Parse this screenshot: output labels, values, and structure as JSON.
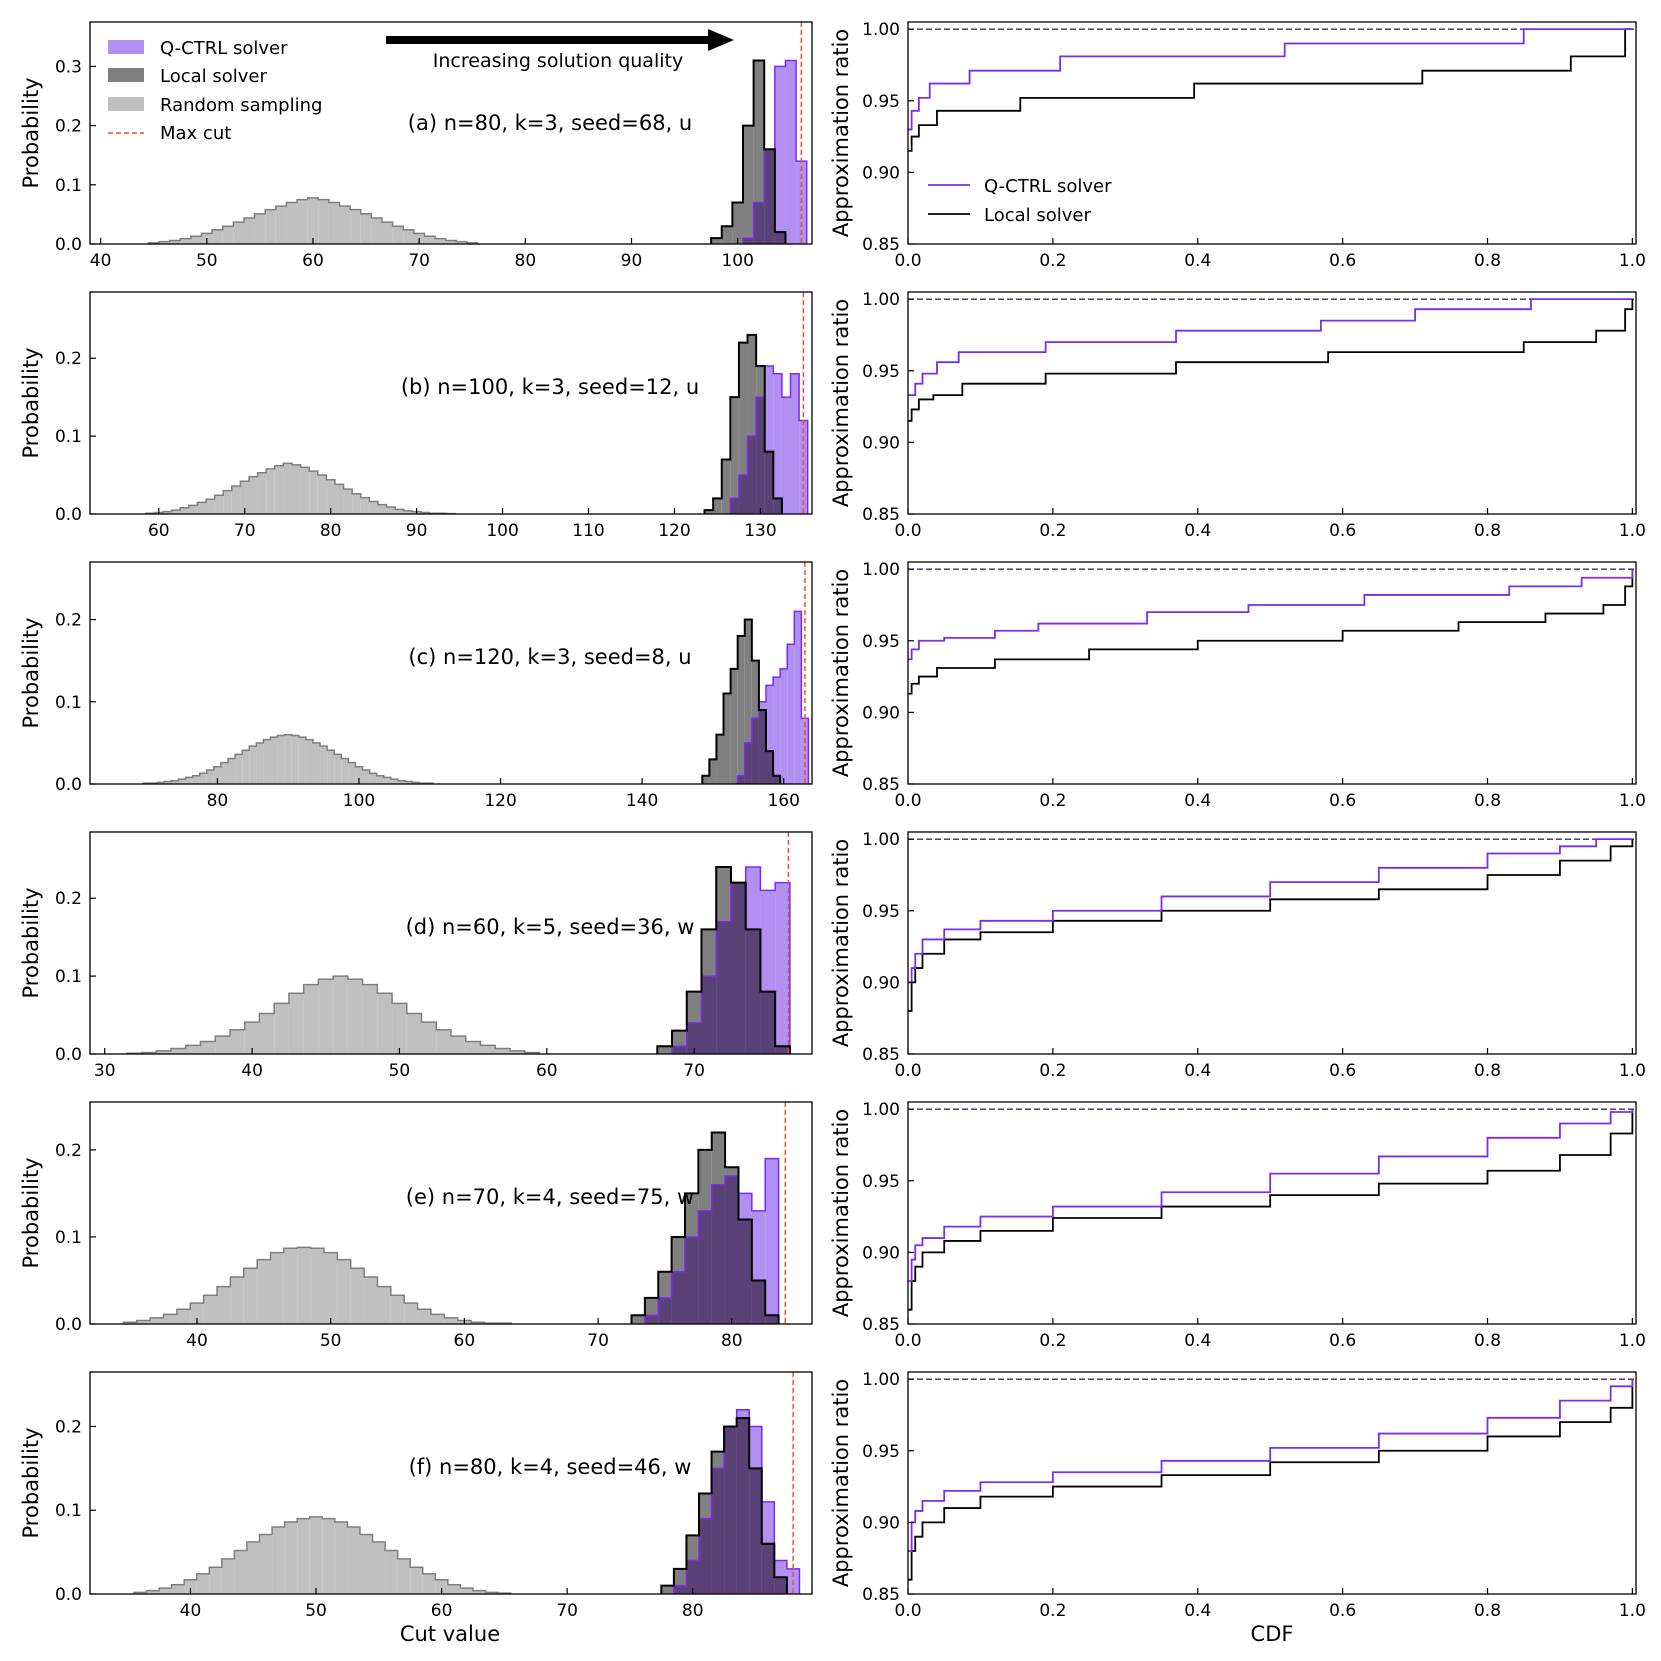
{
  "figure": {
    "hist_xlabel": "Cut value",
    "hist_ylabel": "Probability",
    "cdf_xlabel": "CDF",
    "cdf_ylabel": "Approximation ratio",
    "arrow_text": "Increasing solution quality",
    "hist_legend": [
      "Q-CTRL solver",
      "Local solver",
      "Random sampling",
      "Max cut"
    ],
    "cdf_legend": [
      "Q-CTRL solver",
      "Local solver"
    ],
    "colors": {
      "qctrl_fill": "#b190f2",
      "qctrl_line": "#7b2cf0",
      "local_fill": "#808080",
      "overlap_fill": "#5a4277",
      "random_fill": "#c0c0c0",
      "random_line": "#7f7f7f",
      "maxcut_line": "#e8533a",
      "cdf_qctrl": "#7b2cf0",
      "cdf_local": "#000000"
    }
  },
  "chart_data": [
    {
      "panel": "a",
      "type": "bar",
      "label": "(a)  n=80, k=3, seed=68, u",
      "xlim": [
        39,
        107
      ],
      "ylim": [
        0,
        0.375
      ],
      "xticks": [
        40,
        50,
        60,
        70,
        80,
        90,
        100
      ],
      "yticks": [
        0.0,
        0.1,
        0.2,
        0.3
      ],
      "max_cut": 106,
      "random": {
        "x": [
          45,
          46,
          47,
          48,
          49,
          50,
          51,
          52,
          53,
          54,
          55,
          56,
          57,
          58,
          59,
          60,
          61,
          62,
          63,
          64,
          65,
          66,
          67,
          68,
          69,
          70,
          71,
          72,
          73,
          74,
          75
        ],
        "p": [
          0.002,
          0.004,
          0.006,
          0.009,
          0.013,
          0.018,
          0.024,
          0.03,
          0.037,
          0.044,
          0.051,
          0.058,
          0.064,
          0.07,
          0.075,
          0.078,
          0.075,
          0.07,
          0.064,
          0.058,
          0.051,
          0.044,
          0.037,
          0.03,
          0.024,
          0.018,
          0.013,
          0.009,
          0.006,
          0.004,
          0.002
        ]
      },
      "local": {
        "x": [
          98,
          99,
          100,
          101,
          102,
          103,
          104
        ],
        "p": [
          0.01,
          0.03,
          0.07,
          0.2,
          0.31,
          0.16,
          0.02
        ]
      },
      "qctrl": {
        "x": [
          101,
          102,
          103,
          104,
          105,
          106
        ],
        "p": [
          0.01,
          0.07,
          0.16,
          0.3,
          0.31,
          0.14
        ]
      },
      "cdf_qctrl": {
        "x": [
          0.0,
          0.005,
          0.015,
          0.03,
          0.085,
          0.21,
          0.52,
          0.85,
          1.0
        ],
        "y": [
          0.93,
          0.943,
          0.952,
          0.962,
          0.971,
          0.981,
          0.99,
          1.0,
          1.0
        ]
      },
      "cdf_local": {
        "x": [
          0.0,
          0.005,
          0.015,
          0.04,
          0.155,
          0.395,
          0.71,
          0.915,
          0.99,
          1.0
        ],
        "y": [
          0.915,
          0.925,
          0.933,
          0.943,
          0.952,
          0.962,
          0.971,
          0.981,
          1.0,
          1.0
        ]
      }
    },
    {
      "panel": "b",
      "type": "bar",
      "label": "(b)  n=100, k=3, seed=12, u",
      "xlim": [
        52,
        136
      ],
      "ylim": [
        0,
        0.285
      ],
      "xticks": [
        60,
        70,
        80,
        90,
        100,
        110,
        120,
        130
      ],
      "yticks": [
        0.0,
        0.1,
        0.2
      ],
      "max_cut": 135,
      "random": {
        "x": [
          59,
          60,
          61,
          62,
          63,
          64,
          65,
          66,
          67,
          68,
          69,
          70,
          71,
          72,
          73,
          74,
          75,
          76,
          77,
          78,
          79,
          80,
          81,
          82,
          83,
          84,
          85,
          86,
          87,
          88,
          89,
          90,
          91,
          92,
          93,
          94
        ],
        "p": [
          0.001,
          0.002,
          0.003,
          0.005,
          0.008,
          0.011,
          0.015,
          0.019,
          0.024,
          0.03,
          0.036,
          0.042,
          0.048,
          0.053,
          0.058,
          0.062,
          0.065,
          0.063,
          0.06,
          0.055,
          0.05,
          0.044,
          0.038,
          0.032,
          0.026,
          0.021,
          0.016,
          0.012,
          0.009,
          0.006,
          0.004,
          0.003,
          0.002,
          0.001,
          0.001,
          0.0005
        ]
      },
      "local": {
        "x": [
          124,
          125,
          126,
          127,
          128,
          129,
          130,
          131,
          132
        ],
        "p": [
          0.005,
          0.02,
          0.07,
          0.15,
          0.22,
          0.23,
          0.19,
          0.08,
          0.02
        ]
      },
      "qctrl": {
        "x": [
          127,
          128,
          129,
          130,
          131,
          132,
          133,
          134,
          135
        ],
        "p": [
          0.02,
          0.05,
          0.1,
          0.15,
          0.19,
          0.18,
          0.15,
          0.18,
          0.12
        ]
      },
      "cdf_qctrl": {
        "x": [
          0.0,
          0.01,
          0.02,
          0.04,
          0.07,
          0.19,
          0.37,
          0.57,
          0.7,
          0.86,
          1.0
        ],
        "y": [
          0.933,
          0.941,
          0.948,
          0.956,
          0.963,
          0.97,
          0.978,
          0.985,
          0.993,
          1.0,
          1.0
        ]
      },
      "cdf_local": {
        "x": [
          0.0,
          0.005,
          0.015,
          0.035,
          0.075,
          0.19,
          0.37,
          0.58,
          0.7,
          0.85,
          0.95,
          0.99,
          1.0
        ],
        "y": [
          0.915,
          0.923,
          0.93,
          0.933,
          0.941,
          0.948,
          0.956,
          0.963,
          0.963,
          0.97,
          0.978,
          0.993,
          1.0
        ]
      }
    },
    {
      "panel": "c",
      "type": "bar",
      "label": "(c)  n=120, k=3, seed=8, u",
      "xlim": [
        62,
        164
      ],
      "ylim": [
        0,
        0.27
      ],
      "xticks": [
        80,
        100,
        120,
        140,
        160
      ],
      "yticks": [
        0.0,
        0.1,
        0.2
      ],
      "max_cut": 163,
      "random": {
        "x": [
          70,
          71,
          72,
          73,
          74,
          75,
          76,
          77,
          78,
          79,
          80,
          81,
          82,
          83,
          84,
          85,
          86,
          87,
          88,
          89,
          90,
          91,
          92,
          93,
          94,
          95,
          96,
          97,
          98,
          99,
          100,
          101,
          102,
          103,
          104,
          105,
          106,
          107,
          108,
          109,
          110
        ],
        "p": [
          0.001,
          0.001,
          0.002,
          0.003,
          0.004,
          0.006,
          0.008,
          0.01,
          0.013,
          0.017,
          0.021,
          0.026,
          0.031,
          0.036,
          0.041,
          0.046,
          0.05,
          0.054,
          0.057,
          0.059,
          0.06,
          0.059,
          0.057,
          0.054,
          0.05,
          0.046,
          0.041,
          0.036,
          0.031,
          0.026,
          0.021,
          0.017,
          0.013,
          0.01,
          0.008,
          0.006,
          0.004,
          0.003,
          0.002,
          0.001,
          0.001
        ]
      },
      "local": {
        "x": [
          149,
          150,
          151,
          152,
          153,
          154,
          155,
          156,
          157,
          158,
          159
        ],
        "p": [
          0.01,
          0.03,
          0.06,
          0.11,
          0.14,
          0.18,
          0.2,
          0.15,
          0.09,
          0.04,
          0.01
        ]
      },
      "qctrl": {
        "x": [
          154,
          155,
          156,
          157,
          158,
          159,
          160,
          161,
          162,
          163
        ],
        "p": [
          0.01,
          0.05,
          0.08,
          0.1,
          0.12,
          0.13,
          0.14,
          0.17,
          0.21,
          0.08
        ]
      },
      "cdf_qctrl": {
        "x": [
          0.0,
          0.005,
          0.015,
          0.05,
          0.12,
          0.18,
          0.33,
          0.47,
          0.63,
          0.83,
          0.93,
          1.0
        ],
        "y": [
          0.937,
          0.944,
          0.95,
          0.952,
          0.957,
          0.962,
          0.97,
          0.975,
          0.982,
          0.988,
          0.994,
          1.0
        ]
      },
      "cdf_local": {
        "x": [
          0.0,
          0.005,
          0.015,
          0.04,
          0.12,
          0.25,
          0.4,
          0.6,
          0.76,
          0.88,
          0.96,
          0.99,
          1.0
        ],
        "y": [
          0.913,
          0.92,
          0.925,
          0.931,
          0.937,
          0.944,
          0.95,
          0.957,
          0.963,
          0.969,
          0.975,
          0.988,
          1.0
        ]
      }
    },
    {
      "panel": "d",
      "type": "bar",
      "label": "(d)  n=60, k=5, seed=36, w",
      "xlim": [
        29,
        78
      ],
      "ylim": [
        0,
        0.285
      ],
      "xticks": [
        30,
        40,
        50,
        60,
        70
      ],
      "yticks": [
        0.0,
        0.1,
        0.2
      ],
      "max_cut": 76.4,
      "random": {
        "x": [
          32,
          33,
          34,
          35,
          36,
          37,
          38,
          39,
          40,
          41,
          42,
          43,
          44,
          45,
          46,
          47,
          48,
          49,
          50,
          51,
          52,
          53,
          54,
          55,
          56,
          57,
          58,
          59
        ],
        "p": [
          0.001,
          0.002,
          0.004,
          0.007,
          0.011,
          0.016,
          0.023,
          0.031,
          0.041,
          0.052,
          0.065,
          0.078,
          0.089,
          0.096,
          0.1,
          0.096,
          0.089,
          0.078,
          0.065,
          0.052,
          0.041,
          0.031,
          0.023,
          0.016,
          0.011,
          0.007,
          0.004,
          0.002
        ]
      },
      "local": {
        "x": [
          68,
          69,
          70,
          71,
          72,
          73,
          74,
          75,
          76
        ],
        "p": [
          0.01,
          0.03,
          0.08,
          0.16,
          0.24,
          0.22,
          0.16,
          0.08,
          0.01
        ]
      },
      "qctrl": {
        "x": [
          69,
          70,
          71,
          72,
          73,
          74,
          75,
          76
        ],
        "p": [
          0.01,
          0.04,
          0.1,
          0.17,
          0.22,
          0.24,
          0.21,
          0.22
        ]
      },
      "cdf_qctrl": {
        "x": [
          0.0,
          0.005,
          0.01,
          0.02,
          0.05,
          0.1,
          0.2,
          0.35,
          0.5,
          0.65,
          0.8,
          0.9,
          0.95,
          1.0
        ],
        "y": [
          0.9,
          0.91,
          0.92,
          0.93,
          0.937,
          0.943,
          0.95,
          0.96,
          0.97,
          0.98,
          0.99,
          0.995,
          1.0,
          1.0
        ]
      },
      "cdf_local": {
        "x": [
          0.0,
          0.005,
          0.01,
          0.02,
          0.05,
          0.1,
          0.2,
          0.35,
          0.5,
          0.65,
          0.8,
          0.9,
          0.97,
          1.0
        ],
        "y": [
          0.88,
          0.9,
          0.91,
          0.92,
          0.93,
          0.935,
          0.943,
          0.95,
          0.958,
          0.965,
          0.975,
          0.985,
          0.995,
          1.0
        ]
      }
    },
    {
      "panel": "e",
      "type": "bar",
      "label": "(e)  n=70, k=4, seed=75, w",
      "xlim": [
        32,
        86
      ],
      "ylim": [
        0,
        0.255
      ],
      "xticks": [
        40,
        50,
        60,
        70,
        80
      ],
      "yticks": [
        0.0,
        0.1,
        0.2
      ],
      "max_cut": 84,
      "random": {
        "x": [
          35,
          36,
          37,
          38,
          39,
          40,
          41,
          42,
          43,
          44,
          45,
          46,
          47,
          48,
          49,
          50,
          51,
          52,
          53,
          54,
          55,
          56,
          57,
          58,
          59,
          60,
          61,
          62,
          63
        ],
        "p": [
          0.002,
          0.004,
          0.007,
          0.011,
          0.017,
          0.024,
          0.033,
          0.043,
          0.054,
          0.064,
          0.074,
          0.082,
          0.087,
          0.088,
          0.087,
          0.082,
          0.074,
          0.064,
          0.054,
          0.043,
          0.033,
          0.024,
          0.017,
          0.011,
          0.007,
          0.004,
          0.002,
          0.001,
          0.001
        ]
      },
      "local": {
        "x": [
          73,
          74,
          75,
          76,
          77,
          78,
          79,
          80,
          81,
          82,
          83
        ],
        "p": [
          0.01,
          0.03,
          0.06,
          0.1,
          0.15,
          0.2,
          0.22,
          0.18,
          0.12,
          0.05,
          0.01
        ]
      },
      "qctrl": {
        "x": [
          74,
          75,
          76,
          77,
          78,
          79,
          80,
          81,
          82,
          83
        ],
        "p": [
          0.01,
          0.03,
          0.06,
          0.1,
          0.13,
          0.16,
          0.17,
          0.15,
          0.13,
          0.19
        ]
      },
      "cdf_qctrl": {
        "x": [
          0.0,
          0.005,
          0.01,
          0.02,
          0.05,
          0.1,
          0.2,
          0.35,
          0.5,
          0.65,
          0.8,
          0.9,
          0.97,
          1.0
        ],
        "y": [
          0.88,
          0.895,
          0.905,
          0.91,
          0.918,
          0.925,
          0.932,
          0.942,
          0.955,
          0.967,
          0.98,
          0.99,
          0.998,
          1.0
        ]
      },
      "cdf_local": {
        "x": [
          0.0,
          0.005,
          0.01,
          0.02,
          0.05,
          0.1,
          0.2,
          0.35,
          0.5,
          0.65,
          0.8,
          0.9,
          0.97,
          1.0
        ],
        "y": [
          0.86,
          0.88,
          0.89,
          0.9,
          0.908,
          0.915,
          0.924,
          0.932,
          0.94,
          0.948,
          0.957,
          0.968,
          0.983,
          1.0
        ]
      }
    },
    {
      "panel": "f",
      "type": "bar",
      "label": "(f)  n=80, k=4, seed=46, w",
      "xlim": [
        32,
        89.5
      ],
      "ylim": [
        0,
        0.265
      ],
      "xticks": [
        40,
        50,
        60,
        70,
        80
      ],
      "yticks": [
        0.0,
        0.1,
        0.2
      ],
      "max_cut": 88,
      "random": {
        "x": [
          36,
          37,
          38,
          39,
          40,
          41,
          42,
          43,
          44,
          45,
          46,
          47,
          48,
          49,
          50,
          51,
          52,
          53,
          54,
          55,
          56,
          57,
          58,
          59,
          60,
          61,
          62,
          63,
          64,
          65
        ],
        "p": [
          0.002,
          0.004,
          0.007,
          0.011,
          0.017,
          0.024,
          0.032,
          0.042,
          0.052,
          0.062,
          0.071,
          0.08,
          0.086,
          0.09,
          0.092,
          0.09,
          0.086,
          0.08,
          0.071,
          0.062,
          0.052,
          0.042,
          0.032,
          0.024,
          0.017,
          0.011,
          0.007,
          0.004,
          0.002,
          0.001
        ]
      },
      "local": {
        "x": [
          78,
          79,
          80,
          81,
          82,
          83,
          84,
          85,
          86,
          87
        ],
        "p": [
          0.01,
          0.03,
          0.07,
          0.12,
          0.17,
          0.2,
          0.21,
          0.15,
          0.06,
          0.02
        ]
      },
      "qctrl": {
        "x": [
          79,
          80,
          81,
          82,
          83,
          84,
          85,
          86,
          87,
          88
        ],
        "p": [
          0.01,
          0.04,
          0.09,
          0.15,
          0.2,
          0.22,
          0.2,
          0.11,
          0.04,
          0.03
        ]
      },
      "cdf_qctrl": {
        "x": [
          0.0,
          0.005,
          0.01,
          0.02,
          0.05,
          0.1,
          0.2,
          0.35,
          0.5,
          0.65,
          0.8,
          0.9,
          0.97,
          1.0
        ],
        "y": [
          0.88,
          0.9,
          0.908,
          0.915,
          0.922,
          0.928,
          0.935,
          0.943,
          0.952,
          0.962,
          0.973,
          0.985,
          0.995,
          1.0
        ]
      },
      "cdf_local": {
        "x": [
          0.0,
          0.005,
          0.01,
          0.02,
          0.05,
          0.1,
          0.2,
          0.35,
          0.5,
          0.65,
          0.8,
          0.9,
          0.97,
          1.0
        ],
        "y": [
          0.86,
          0.88,
          0.89,
          0.9,
          0.91,
          0.918,
          0.925,
          0.933,
          0.942,
          0.95,
          0.96,
          0.97,
          0.98,
          1.0
        ]
      }
    }
  ]
}
